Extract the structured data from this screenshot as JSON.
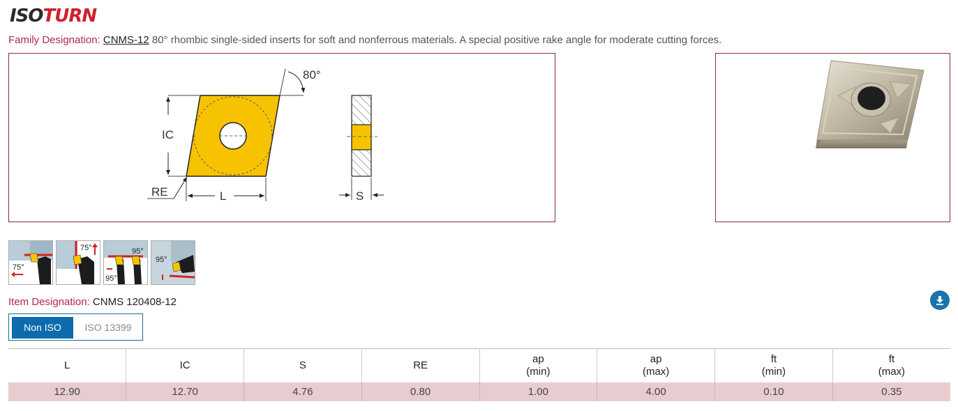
{
  "brand": {
    "part1": "ISO",
    "part2": "TURN"
  },
  "family": {
    "label": "Family Designation:",
    "code": "CNMS-12",
    "description": "80° rhombic single-sided inserts for soft and nonferrous materials. A special positive rake angle for moderate cutting forces."
  },
  "drawing": {
    "angle_label": "80°",
    "ic_label": "IC",
    "re_label": "RE",
    "l_label": "L",
    "s_label": "S"
  },
  "applications": [
    {
      "angle_1": "75°",
      "angle_2": ""
    },
    {
      "angle_1": "75°",
      "angle_2": ""
    },
    {
      "angle_1": "95°",
      "angle_2": "95°"
    },
    {
      "angle_1": "95°",
      "angle_2": ""
    }
  ],
  "item": {
    "label": "Item Designation:",
    "code": "CNMS 120408-12"
  },
  "toggle": {
    "active": "Non ISO",
    "inactive": "ISO 13399"
  },
  "table": {
    "headers": [
      {
        "l1": "L",
        "l2": ""
      },
      {
        "l1": "IC",
        "l2": ""
      },
      {
        "l1": "S",
        "l2": ""
      },
      {
        "l1": "RE",
        "l2": ""
      },
      {
        "l1": "ap",
        "l2": "(min)"
      },
      {
        "l1": "ap",
        "l2": "(max)"
      },
      {
        "l1": "ft",
        "l2": "(min)"
      },
      {
        "l1": "ft",
        "l2": "(max)"
      }
    ],
    "row": [
      "12.90",
      "12.70",
      "4.76",
      "0.80",
      "1.00",
      "4.00",
      "0.10",
      "0.35"
    ]
  },
  "colors": {
    "accent_red": "#b3254f",
    "insert_yellow": "#f7c300",
    "button_blue": "#0c6aad",
    "row_bg": "#e8cdd0"
  }
}
